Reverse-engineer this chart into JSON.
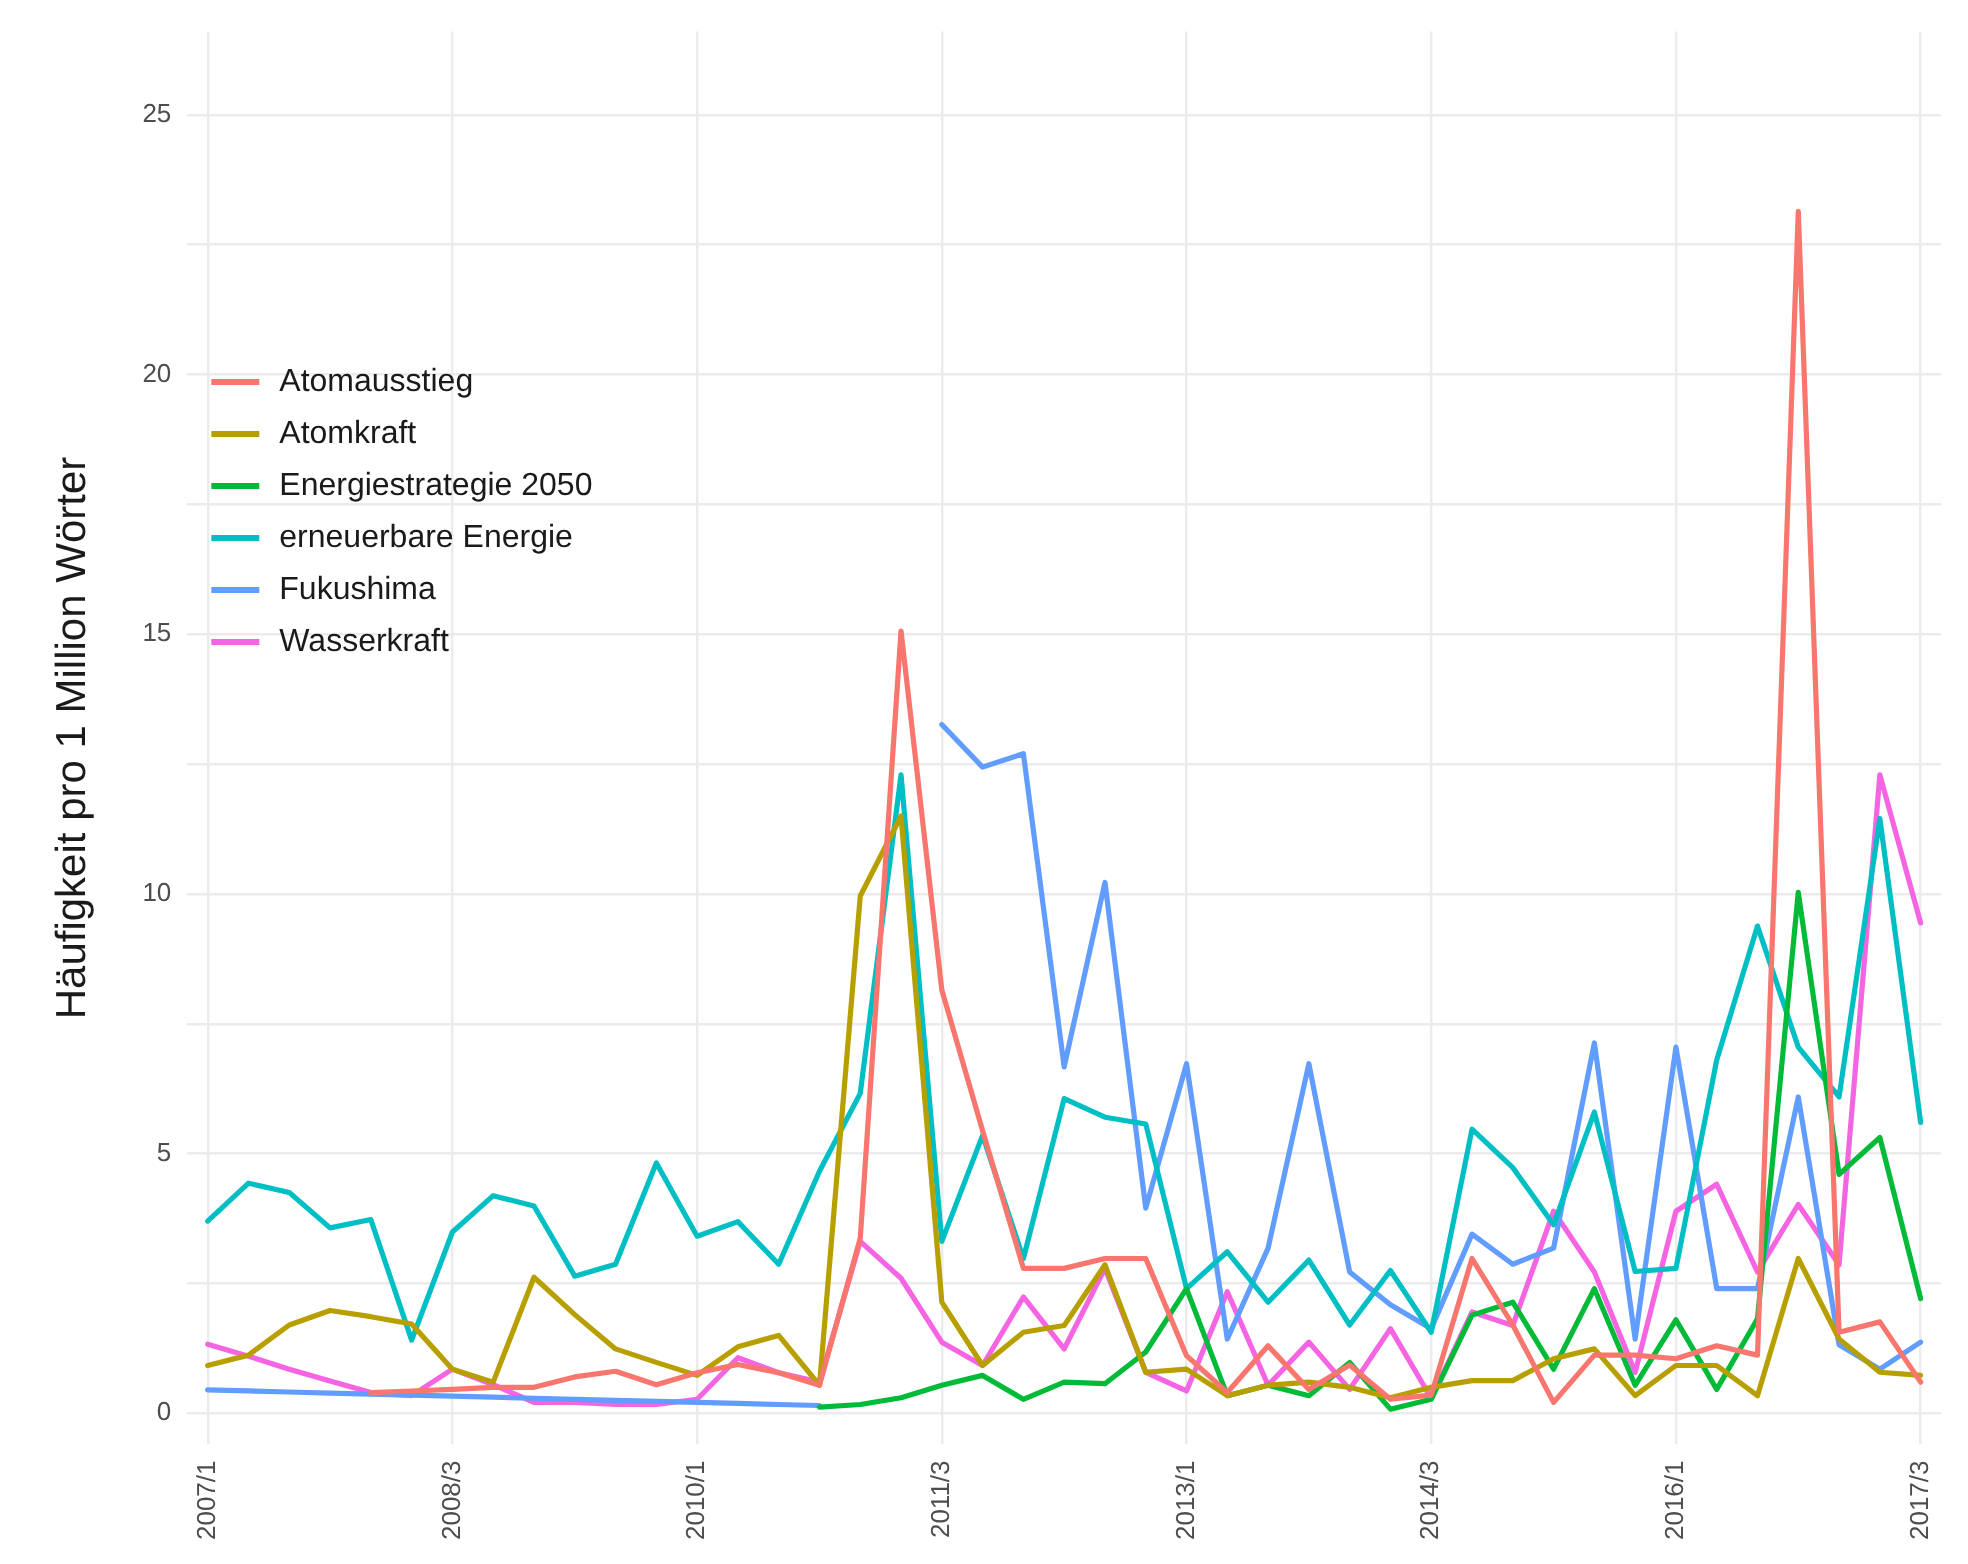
{
  "chart_data": {
    "type": "line",
    "ylabel": "Häufigkeit pro 1 Million Wörter",
    "categories": [
      "2007/1",
      null,
      null,
      null,
      null,
      null,
      "2008/3",
      null,
      null,
      null,
      null,
      null,
      "2010/1",
      null,
      null,
      null,
      null,
      null,
      "2011/3",
      null,
      null,
      null,
      null,
      null,
      "2013/1",
      null,
      null,
      null,
      null,
      null,
      "2014/3",
      null,
      null,
      null,
      null,
      null,
      "2016/1",
      null,
      null,
      null,
      null,
      null,
      "2017/3"
    ],
    "ylim": [
      -0.6,
      26.6
    ],
    "yticks": [
      0,
      {
        "value": 2.5,
        "label": null
      },
      5,
      {
        "value": 7.5,
        "label": null
      },
      10,
      {
        "value": 12.5,
        "label": null
      },
      15,
      {
        "value": 17.5,
        "label": null
      },
      20,
      {
        "value": 22.5,
        "label": null
      },
      25
    ],
    "grid": true,
    "legend": "top left",
    "series": [
      {
        "name": "Atomausstieg",
        "color": "#f8766d",
        "values": [
          null,
          null,
          null,
          null,
          0.4,
          0.43,
          0.46,
          0.5,
          0.5,
          0.7,
          0.81,
          0.55,
          0.78,
          0.94,
          0.78,
          0.54,
          3.37,
          15.06,
          8.15,
          5.44,
          2.79,
          2.79,
          2.98,
          2.98,
          1.11,
          0.4,
          1.3,
          0.46,
          0.93,
          0.27,
          0.35,
          2.98,
          1.7,
          0.21,
          1.12,
          1.12,
          1.05,
          1.3,
          1.12,
          23.14,
          1.56,
          1.76,
          0.6
        ]
      },
      {
        "name": "Atomkraft",
        "color": "#b79f00",
        "values": [
          0.92,
          1.12,
          1.7,
          1.98,
          1.86,
          1.72,
          0.85,
          0.6,
          2.62,
          1.9,
          1.24,
          0.98,
          0.73,
          1.28,
          1.5,
          0.54,
          9.96,
          11.5,
          2.14,
          0.92,
          1.56,
          1.69,
          2.86,
          0.79,
          0.85,
          0.34,
          0.54,
          0.6,
          0.5,
          0.3,
          0.5,
          0.63,
          0.63,
          1.05,
          1.24,
          0.34,
          0.92,
          0.92,
          0.34,
          2.98,
          1.43,
          0.79,
          0.73
        ]
      },
      {
        "name": "Energiestrategie 2050",
        "color": "#00ba38",
        "values": [
          null,
          null,
          null,
          null,
          null,
          null,
          null,
          null,
          null,
          null,
          null,
          null,
          null,
          null,
          null,
          0.12,
          0.17,
          0.3,
          0.54,
          0.73,
          0.27,
          0.6,
          0.57,
          1.18,
          2.4,
          0.34,
          0.54,
          0.34,
          0.98,
          0.08,
          0.27,
          1.89,
          2.14,
          0.85,
          2.4,
          0.54,
          1.8,
          0.46,
          1.82,
          10.03,
          4.6,
          5.31,
          2.21
        ]
      },
      {
        "name": "erneuerbare Energie",
        "color": "#00bfc4",
        "values": [
          3.7,
          4.43,
          4.25,
          3.57,
          3.73,
          1.41,
          3.49,
          4.19,
          3.99,
          2.64,
          2.87,
          4.82,
          3.41,
          3.69,
          2.87,
          4.66,
          6.16,
          12.29,
          3.31,
          5.35,
          2.98,
          6.06,
          5.7,
          5.57,
          2.4,
          3.11,
          2.14,
          2.95,
          1.7,
          2.75,
          1.56,
          5.47,
          4.73,
          3.63,
          5.8,
          2.73,
          2.79,
          6.8,
          9.38,
          7.05,
          6.09,
          11.45,
          5.6
        ]
      },
      {
        "name": "Fukushima",
        "color": "#619cff",
        "values": [
          0.45,
          0.43,
          0.41,
          0.39,
          0.37,
          0.35,
          0.33,
          0.31,
          0.29,
          0.27,
          0.25,
          0.23,
          0.21,
          0.19,
          0.17,
          0.15,
          null,
          null,
          13.26,
          12.44,
          12.7,
          6.67,
          10.22,
          3.95,
          6.73,
          1.43,
          3.18,
          6.73,
          2.72,
          2.09,
          1.63,
          3.45,
          2.87,
          3.18,
          7.13,
          1.43,
          7.05,
          2.4,
          2.4,
          6.09,
          1.32,
          0.85,
          1.37
        ]
      },
      {
        "name": "Wasserkraft",
        "color": "#f564e3",
        "values": [
          1.33,
          1.1,
          0.85,
          0.62,
          0.4,
          0.34,
          0.85,
          0.55,
          0.21,
          0.21,
          0.17,
          0.17,
          0.27,
          1.07,
          0.78,
          0.6,
          3.31,
          2.6,
          1.37,
          0.92,
          2.24,
          1.24,
          2.79,
          0.79,
          0.43,
          2.34,
          0.54,
          1.37,
          0.46,
          1.63,
          0.29,
          1.95,
          1.69,
          3.89,
          2.72,
          0.79,
          3.89,
          4.41,
          2.72,
          4.02,
          2.86,
          12.29,
          9.44
        ]
      }
    ]
  }
}
